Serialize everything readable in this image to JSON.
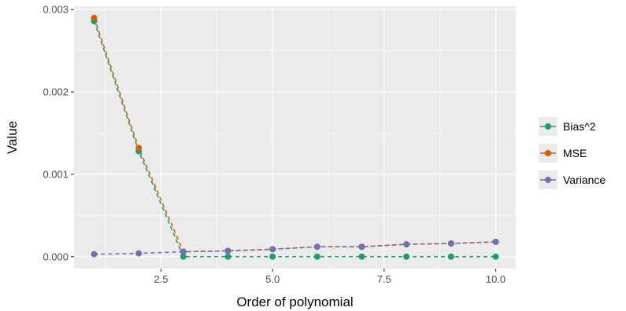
{
  "chart_data": {
    "type": "line",
    "title": "",
    "xlabel": "Order of polynomial",
    "ylabel": "Value",
    "xlim": [
      0.55,
      10.45
    ],
    "ylim": [
      -0.000145,
      0.00304
    ],
    "x_ticks": [
      2.5,
      5.0,
      7.5,
      10.0
    ],
    "x_tick_labels": [
      "2.5",
      "5.0",
      "7.5",
      "10.0"
    ],
    "y_ticks": [
      0,
      0.001,
      0.002,
      0.003
    ],
    "y_tick_labels": [
      "0.000",
      "0.001",
      "0.002",
      "0.003"
    ],
    "grid": true,
    "legend_position": "right",
    "line_style": "dashed",
    "x": [
      1,
      2,
      3,
      4,
      5,
      6,
      7,
      8,
      9,
      10
    ],
    "series": [
      {
        "name": "Bias^2",
        "color": "#1b9e77",
        "values": [
          0.00286,
          0.00128,
          5e-07,
          4e-07,
          3e-07,
          3e-07,
          3e-07,
          2e-07,
          2e-07,
          2e-07
        ]
      },
      {
        "name": "MSE",
        "color": "#d95f02",
        "values": [
          0.0029,
          0.00132,
          6e-05,
          7e-05,
          9e-05,
          0.00012,
          0.00012,
          0.00015,
          0.00016,
          0.00018
        ]
      },
      {
        "name": "Variance",
        "color": "#7570b3",
        "values": [
          3e-05,
          4e-05,
          6e-05,
          7e-05,
          9e-05,
          0.00012,
          0.00012,
          0.00015,
          0.00016,
          0.00018
        ]
      }
    ]
  }
}
